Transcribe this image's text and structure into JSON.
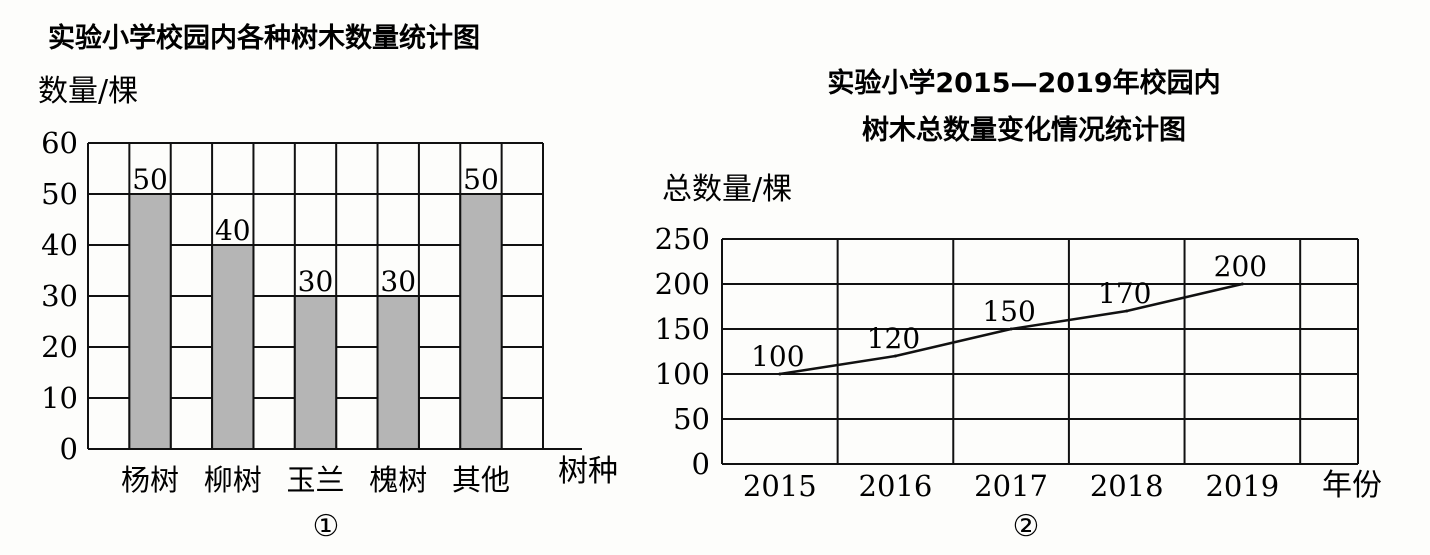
{
  "chart_data": [
    {
      "type": "bar",
      "title": "实验小学校园内各种树木数量统计图",
      "ylabel": "数量/棵",
      "xlabel": "树种",
      "categories": [
        "杨树",
        "柳树",
        "玉兰",
        "槐树",
        "其他"
      ],
      "values": [
        50,
        40,
        30,
        30,
        50
      ],
      "data_labels": [
        "50",
        "40",
        "30",
        "30",
        "50"
      ],
      "yticks": [
        "0",
        "10",
        "20",
        "30",
        "40",
        "50",
        "60"
      ],
      "ylim": [
        0,
        60
      ],
      "grid": true,
      "bar_color": "#b5b5b5",
      "figure_number": "①"
    },
    {
      "type": "line",
      "title_line1": "实验小学2015—2019年校园内",
      "title_line2": "树木总数量变化情况统计图",
      "ylabel": "总数量/棵",
      "xlabel": "年份",
      "categories": [
        "2015",
        "2016",
        "2017",
        "2018",
        "2019"
      ],
      "values": [
        100,
        120,
        150,
        170,
        200
      ],
      "data_labels": [
        "100",
        "120",
        "150",
        "170",
        "200"
      ],
      "yticks": [
        "0",
        "50",
        "100",
        "150",
        "200",
        "250"
      ],
      "ylim": [
        0,
        250
      ],
      "grid": true,
      "figure_number": "②"
    }
  ]
}
